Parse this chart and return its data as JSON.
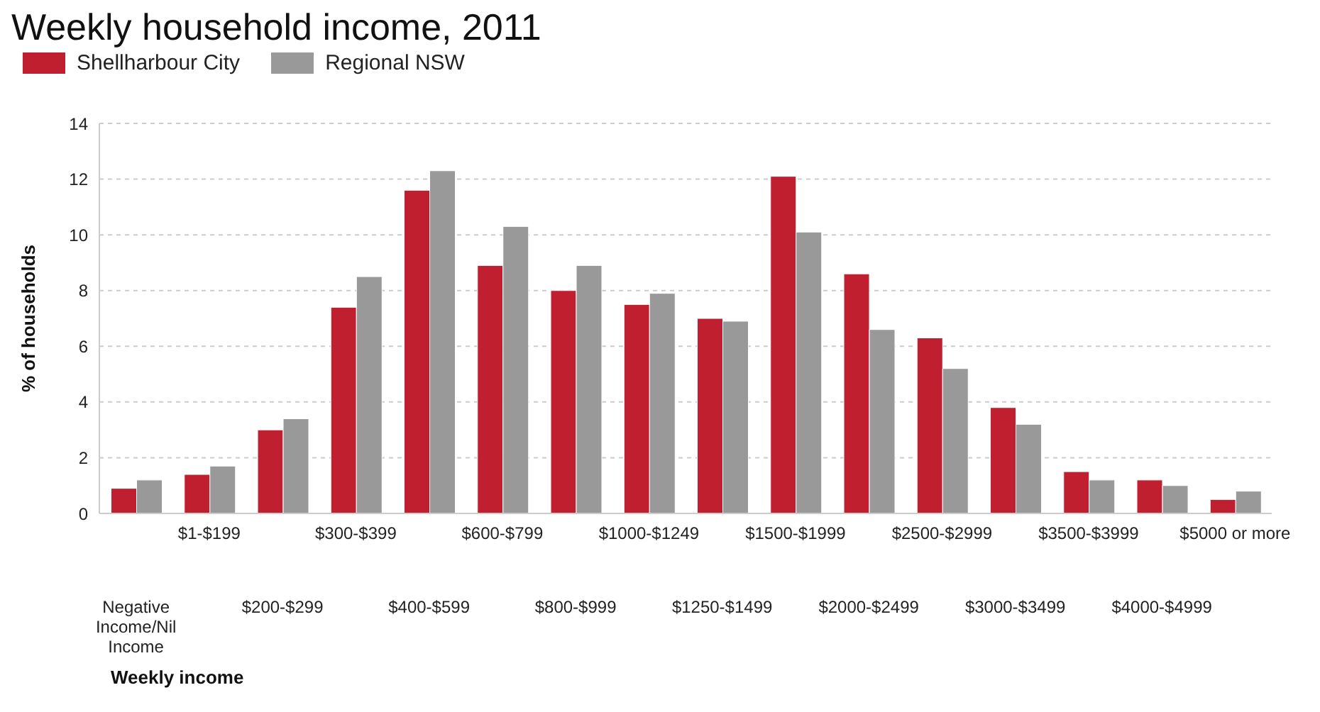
{
  "chart_data": {
    "type": "bar",
    "title": "Weekly household income, 2011",
    "xlabel": "Weekly income",
    "ylabel": "% of households",
    "categories": [
      "Negative Income/Nil Income",
      "$1-$199",
      "$200-$299",
      "$300-$399",
      "$400-$599",
      "$600-$799",
      "$800-$999",
      "$1000-$1249",
      "$1250-$1499",
      "$1500-$1999",
      "$2000-$2499",
      "$2500-$2999",
      "$3000-$3499",
      "$3500-$3999",
      "$4000-$4999",
      "$5000 or more"
    ],
    "series": [
      {
        "name": "Shellharbour City",
        "color": "#c01f2f",
        "values": [
          0.9,
          1.4,
          3.0,
          7.4,
          11.6,
          8.9,
          8.0,
          7.5,
          7.0,
          12.1,
          8.6,
          6.3,
          3.8,
          1.5,
          1.2,
          0.5
        ]
      },
      {
        "name": "Regional NSW",
        "color": "#999999",
        "values": [
          1.2,
          1.7,
          3.4,
          8.5,
          12.3,
          10.3,
          8.9,
          7.9,
          6.9,
          10.1,
          6.6,
          5.2,
          3.2,
          1.2,
          1.0,
          0.8
        ]
      }
    ],
    "ylim": [
      0,
      14
    ],
    "yticks": [
      0,
      2,
      4,
      6,
      8,
      10,
      12,
      14
    ],
    "grid": "y",
    "legend": "top left"
  }
}
